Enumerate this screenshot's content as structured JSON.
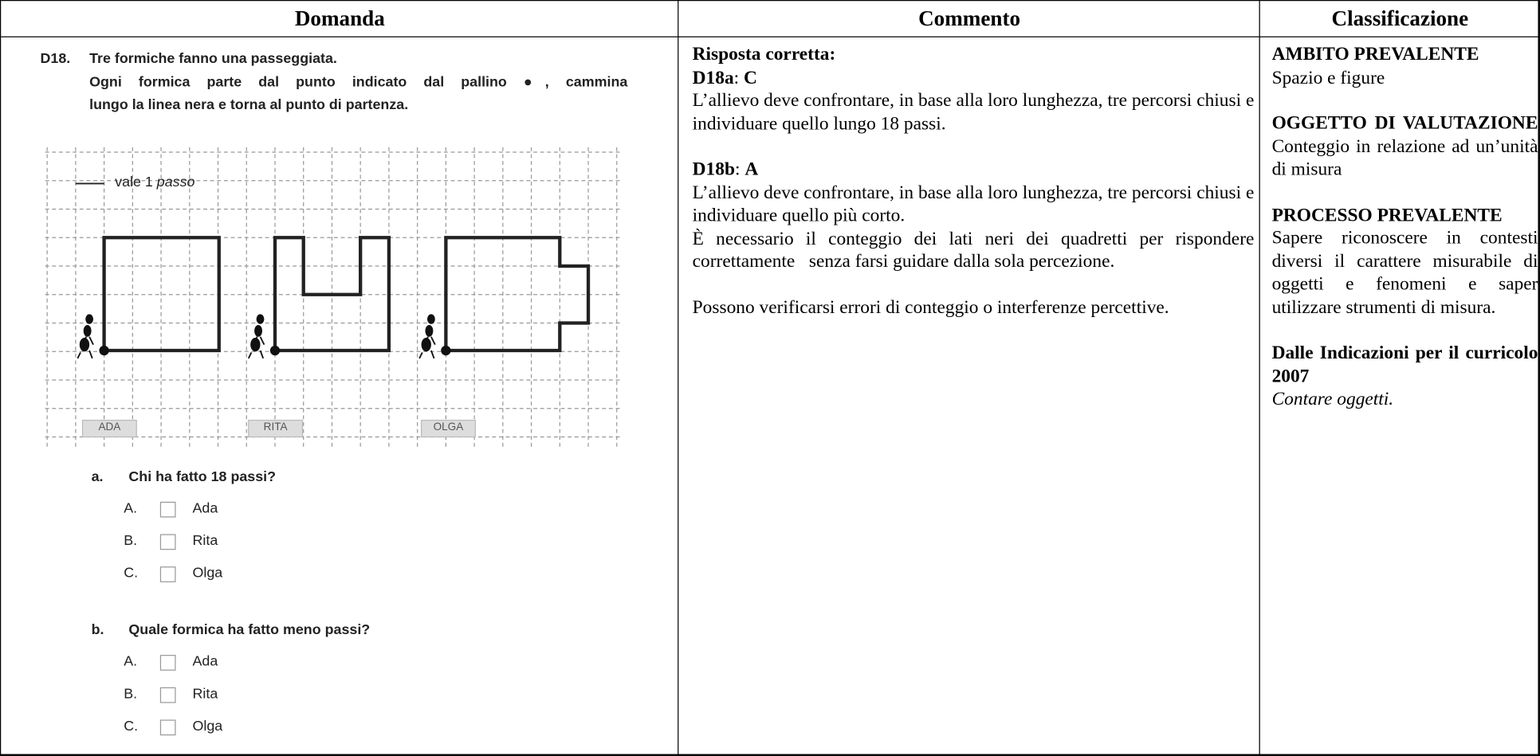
{
  "table": {
    "headers": [
      "Domanda",
      "Commento",
      "Classificazione"
    ]
  },
  "question": {
    "number": "D18.",
    "lines": [
      "Tre formiche fanno una passeggiata.",
      "Ogni formica parte dal punto indicato dal pallino ●, cammina",
      "lungo la linea nera e torna al punto di partenza."
    ],
    "legend": "vale 1",
    "legend_unit": "passo",
    "ants": [
      "ADA",
      "RITA",
      "OLGA"
    ],
    "parts": [
      {
        "letter": "a.",
        "text": "Chi ha fatto 18 passi?",
        "options": [
          {
            "letter": "A.",
            "text": "Ada"
          },
          {
            "letter": "B.",
            "text": "Rita"
          },
          {
            "letter": "C.",
            "text": "Olga"
          }
        ]
      },
      {
        "letter": "b.",
        "text": "Quale formica ha fatto meno passi?",
        "options": [
          {
            "letter": "A.",
            "text": "Ada"
          },
          {
            "letter": "B.",
            "text": "Rita"
          },
          {
            "letter": "C.",
            "text": "Olga"
          }
        ]
      }
    ]
  },
  "comment": {
    "heading": "Risposta corretta:",
    "answers": [
      {
        "label": "D18a",
        "sep": ":",
        "answer": "C",
        "paragraphs": [
          "L’allievo deve confrontare, in base alla loro lunghezza, tre percorsi chiusi e individuare quello lungo 18 passi."
        ]
      },
      {
        "label": "D18b",
        "sep": ":",
        "answer": "A",
        "paragraphs": [
          "L’allievo deve confrontare, in base alla loro lunghezza, tre percorsi chiusi e individuare quello più corto.",
          "È necessario il conteggio dei lati neri dei quadretti per rispondere correttamente   senza farsi guidare dalla sola percezione."
        ]
      }
    ],
    "note": "Possono verificarsi errori di conteggio o interferenze percettive."
  },
  "classification": [
    {
      "heading": "AMBITO PREVALENTE",
      "text": "Spazio e figure"
    },
    {
      "heading": "OGGETTO DI VALUTAZIONE",
      "text": "Conteggio in relazione ad un’unità di misura"
    },
    {
      "heading": "PROCESSO PREVALENTE",
      "text": "Sapere riconoscere in contesti diversi il carattere misurabile di oggetti e fenomeni e saper utilizzare strumenti di misura."
    },
    {
      "heading": "Dalle Indicazioni per il curricolo 2007",
      "text": "Contare oggetti."
    }
  ]
}
